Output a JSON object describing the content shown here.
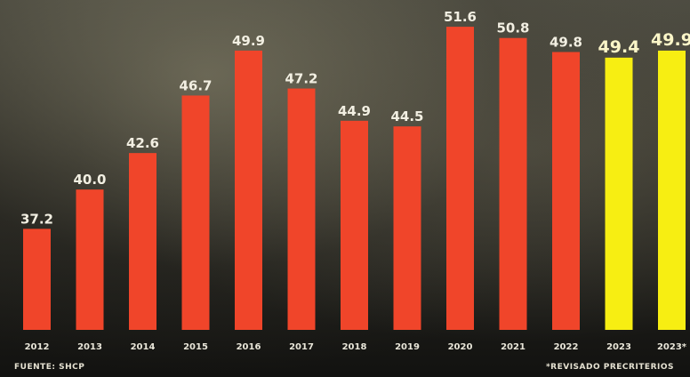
{
  "source_label": "FUENTE: SHCP",
  "note_label": "*REVISADO PRECRITERIOS",
  "colors": {
    "regular": "#f0452a",
    "highlight": "#f7ee12"
  },
  "chart_data": {
    "type": "bar",
    "categories": [
      "2012",
      "2013",
      "2014",
      "2015",
      "2016",
      "2017",
      "2018",
      "2019",
      "2020",
      "2021",
      "2022",
      "2023",
      "2023*"
    ],
    "values": [
      37.2,
      40.0,
      42.6,
      46.7,
      49.9,
      47.2,
      44.9,
      44.5,
      51.6,
      50.8,
      49.8,
      49.4,
      49.9
    ],
    "value_labels": [
      "37.2",
      "40.0",
      "42.6",
      "46.7",
      "49.9",
      "47.2",
      "44.9",
      "44.5",
      "51.6",
      "50.8",
      "49.8",
      "49.4",
      "49.9"
    ],
    "highlighted": [
      "2023",
      "2023*"
    ],
    "title": "",
    "xlabel": "",
    "ylabel": "",
    "ylim": [
      30,
      53
    ],
    "grid": false,
    "legend": "none"
  }
}
